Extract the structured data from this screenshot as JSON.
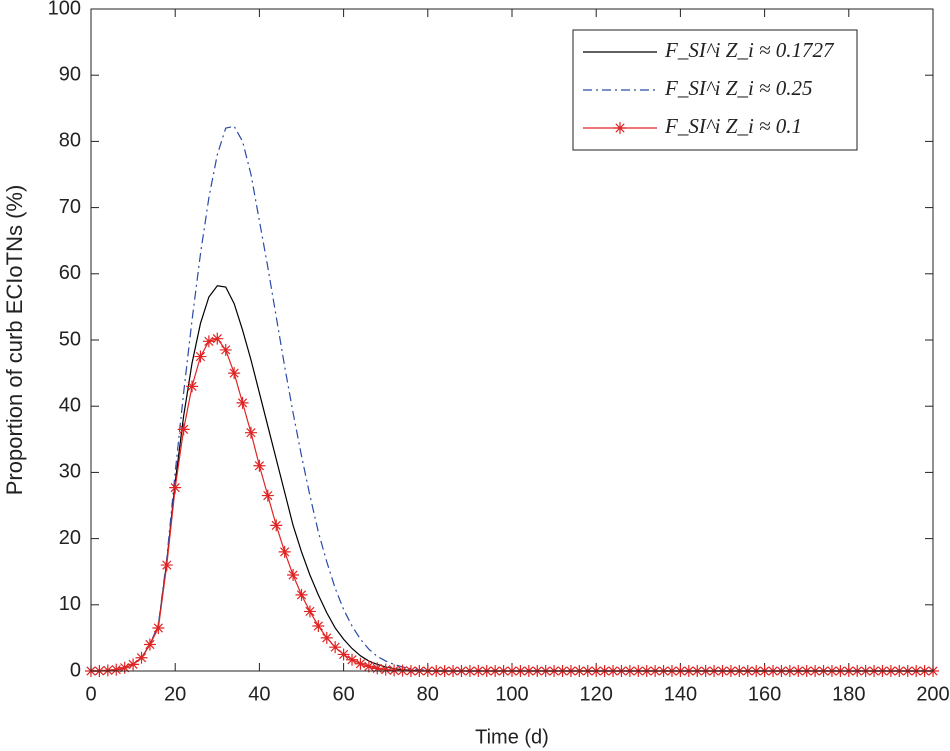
{
  "chart_data": {
    "type": "line",
    "x_label": "Time (d)",
    "y_label": "Proportion of curb ECIoTNs (%)",
    "xlim": [
      0,
      200
    ],
    "ylim": [
      0,
      100
    ],
    "xticks": [
      0,
      20,
      40,
      60,
      80,
      100,
      120,
      140,
      160,
      180,
      200
    ],
    "yticks": [
      0,
      10,
      20,
      30,
      40,
      50,
      60,
      70,
      80,
      90,
      100
    ],
    "grid": false,
    "legend": "upper right",
    "x": [
      0,
      2,
      4,
      6,
      8,
      10,
      12,
      14,
      16,
      18,
      20,
      22,
      24,
      26,
      28,
      30,
      32,
      34,
      36,
      38,
      40,
      42,
      44,
      46,
      48,
      50,
      52,
      54,
      56,
      58,
      60,
      62,
      64,
      66,
      68,
      70,
      72,
      74,
      76,
      78,
      80,
      82,
      84,
      86,
      88,
      90,
      92,
      94,
      96,
      98,
      100,
      102,
      104,
      106,
      108,
      110,
      112,
      114,
      116,
      118,
      120,
      122,
      124,
      126,
      128,
      130,
      132,
      134,
      136,
      138,
      140,
      142,
      144,
      146,
      148,
      150,
      152,
      154,
      156,
      158,
      160,
      162,
      164,
      166,
      168,
      170,
      172,
      174,
      176,
      178,
      180,
      182,
      184,
      186,
      188,
      190,
      192,
      194,
      196,
      198,
      200
    ],
    "series": [
      {
        "name": "F_SI^i Z_i ≈ 0.1727",
        "color": "#000000",
        "style": "solid",
        "marker": "none",
        "values": [
          0,
          0,
          0.1,
          0.2,
          0.5,
          1,
          2,
          4,
          6.8,
          16.5,
          28.5,
          38.5,
          46.5,
          52.5,
          56.5,
          58.2,
          58,
          55.5,
          51.5,
          47,
          42,
          37,
          32,
          27,
          22,
          18,
          14.5,
          11.5,
          8.8,
          6.5,
          4.8,
          3.4,
          2.3,
          1.5,
          1,
          0.6,
          0.35,
          0.2,
          0.1,
          0.05,
          0,
          0,
          0,
          0,
          0,
          0,
          0,
          0,
          0,
          0,
          0,
          0,
          0,
          0,
          0,
          0,
          0,
          0,
          0,
          0,
          0,
          0,
          0,
          0,
          0,
          0,
          0,
          0,
          0,
          0,
          0,
          0,
          0,
          0,
          0,
          0,
          0,
          0,
          0,
          0,
          0,
          0,
          0,
          0,
          0,
          0,
          0,
          0,
          0,
          0,
          0,
          0,
          0,
          0,
          0,
          0,
          0,
          0,
          0,
          0,
          0
        ]
      },
      {
        "name": "F_SI^i Z_i ≈ 0.25",
        "color": "#2a4aa8",
        "style": "dashdot",
        "marker": "none",
        "values": [
          0,
          0,
          0.1,
          0.2,
          0.5,
          1,
          2,
          4,
          7,
          17,
          30,
          42,
          53,
          63,
          71.5,
          78,
          82,
          82.3,
          80,
          75,
          68,
          61,
          53.5,
          46,
          39,
          32.5,
          26.5,
          21,
          16.5,
          12.5,
          9.3,
          6.8,
          4.8,
          3.3,
          2.2,
          1.5,
          1,
          0.6,
          0.35,
          0.2,
          0.1,
          0,
          0,
          0,
          0,
          0,
          0,
          0,
          0,
          0,
          0,
          0,
          0,
          0,
          0,
          0,
          0,
          0,
          0,
          0,
          0,
          0,
          0,
          0,
          0,
          0,
          0,
          0,
          0,
          0,
          0,
          0,
          0,
          0,
          0,
          0,
          0,
          0,
          0,
          0,
          0,
          0,
          0,
          0,
          0,
          0,
          0,
          0,
          0,
          0,
          0,
          0,
          0,
          0,
          0,
          0,
          0,
          0,
          0,
          0,
          0
        ]
      },
      {
        "name": "F_SI^i Z_i ≈ 0.1",
        "color": "#e02424",
        "style": "solid",
        "marker": "asterisk",
        "values": [
          0,
          0,
          0.1,
          0.2,
          0.5,
          1,
          2,
          4,
          6.5,
          16,
          27.7,
          36.5,
          43,
          47.5,
          49.8,
          50.2,
          48.5,
          45,
          40.5,
          36,
          31,
          26.5,
          22,
          18,
          14.5,
          11.5,
          9,
          6.8,
          5,
          3.6,
          2.5,
          1.7,
          1.1,
          0.7,
          0.4,
          0.2,
          0.1,
          0.05,
          0,
          0,
          0,
          0,
          0,
          0,
          0,
          0,
          0,
          0,
          0,
          0,
          0,
          0,
          0,
          0,
          0,
          0,
          0,
          0,
          0,
          0,
          0,
          0,
          0,
          0,
          0,
          0,
          0,
          0,
          0,
          0,
          0,
          0,
          0,
          0,
          0,
          0,
          0,
          0,
          0,
          0,
          0,
          0,
          0,
          0,
          0,
          0,
          0,
          0,
          0,
          0,
          0,
          0,
          0,
          0,
          0,
          0,
          0,
          0,
          0,
          0,
          0
        ]
      }
    ]
  }
}
